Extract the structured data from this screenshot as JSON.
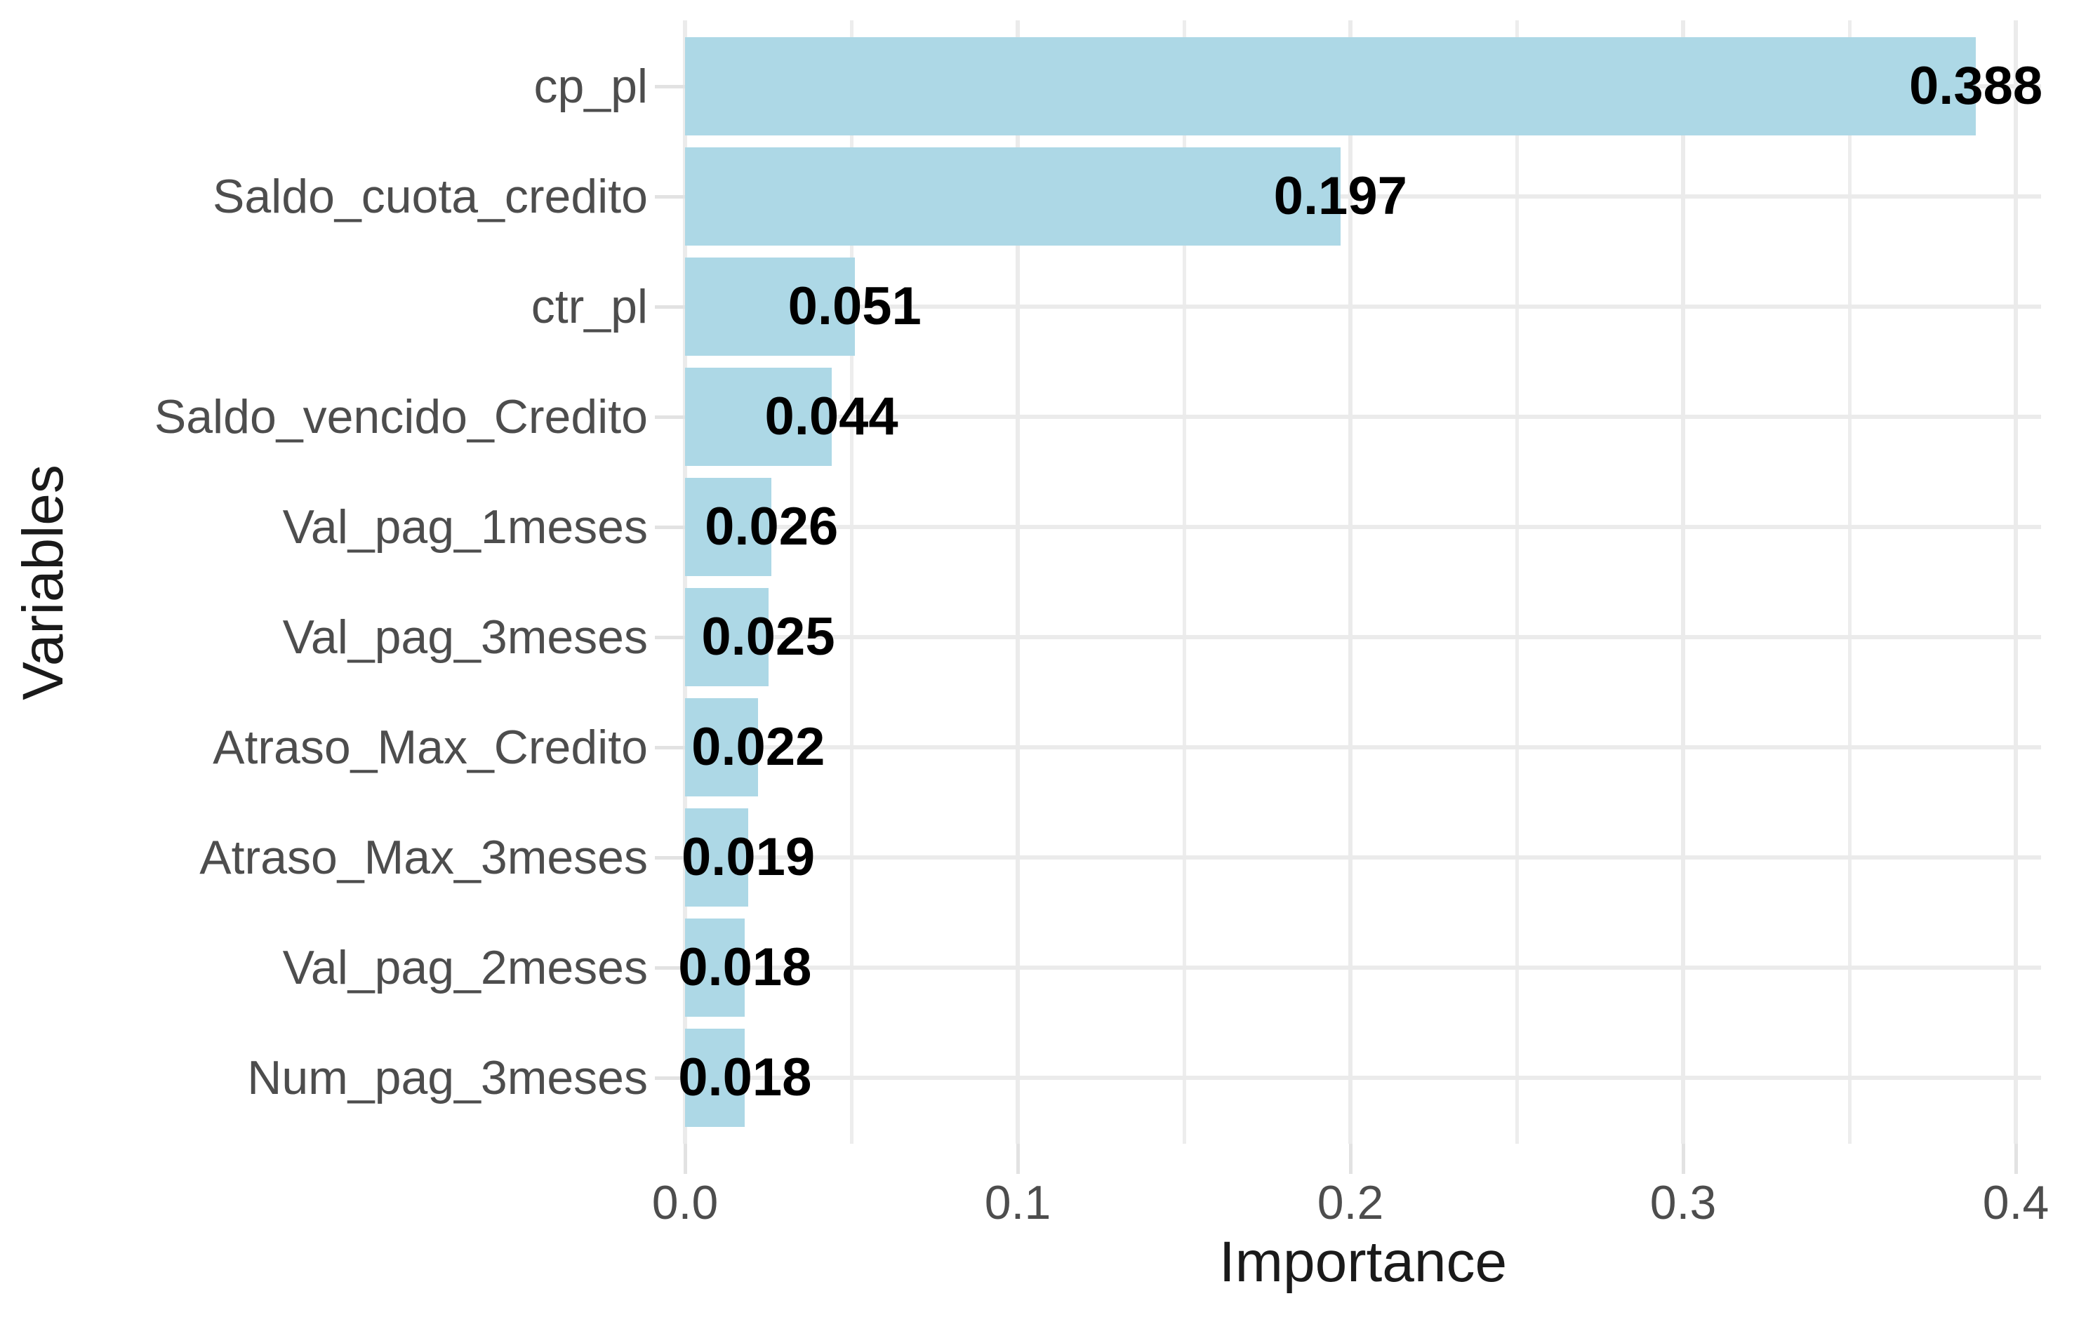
{
  "chart_data": {
    "type": "bar",
    "orientation": "horizontal",
    "title": "",
    "xlabel": "Importance",
    "ylabel": "Variables",
    "categories": [
      "cp_pl",
      "Saldo_cuota_credito",
      "ctr_pl",
      "Saldo_vencido_Credito",
      "Val_pag_1meses",
      "Val_pag_3meses",
      "Atraso_Max_Credito",
      "Atraso_Max_3meses",
      "Val_pag_2meses",
      "Num_pag_3meses"
    ],
    "values": [
      0.388,
      0.197,
      0.051,
      0.044,
      0.026,
      0.025,
      0.022,
      0.019,
      0.018,
      0.018
    ],
    "value_labels": [
      "0.388",
      "0.197",
      "0.051",
      "0.044",
      "0.026",
      "0.025",
      "0.022",
      "0.019",
      "0.018",
      "0.018"
    ],
    "x_ticks": {
      "labels": [
        "0.0",
        "0.1",
        "0.2",
        "0.3",
        "0.4"
      ],
      "values": [
        0.0,
        0.1,
        0.2,
        0.3,
        0.4
      ]
    },
    "x_minor_ticks": [
      0.05,
      0.15,
      0.25,
      0.35
    ],
    "xlim": [
      0,
      0.4074
    ],
    "grid": "vertical major+minor, horizontal major per category",
    "legend": "none",
    "colors": {
      "bar_fill": "#ADD8E6",
      "grid_major": "#EBEBEB",
      "grid_minor": "#EDEDED",
      "tick_mark": "#E2E2E2",
      "axis_text": "#4D4D4D",
      "axis_title": "#1A1A1A",
      "value_label": "#000000",
      "background": "#FFFFFF"
    }
  }
}
